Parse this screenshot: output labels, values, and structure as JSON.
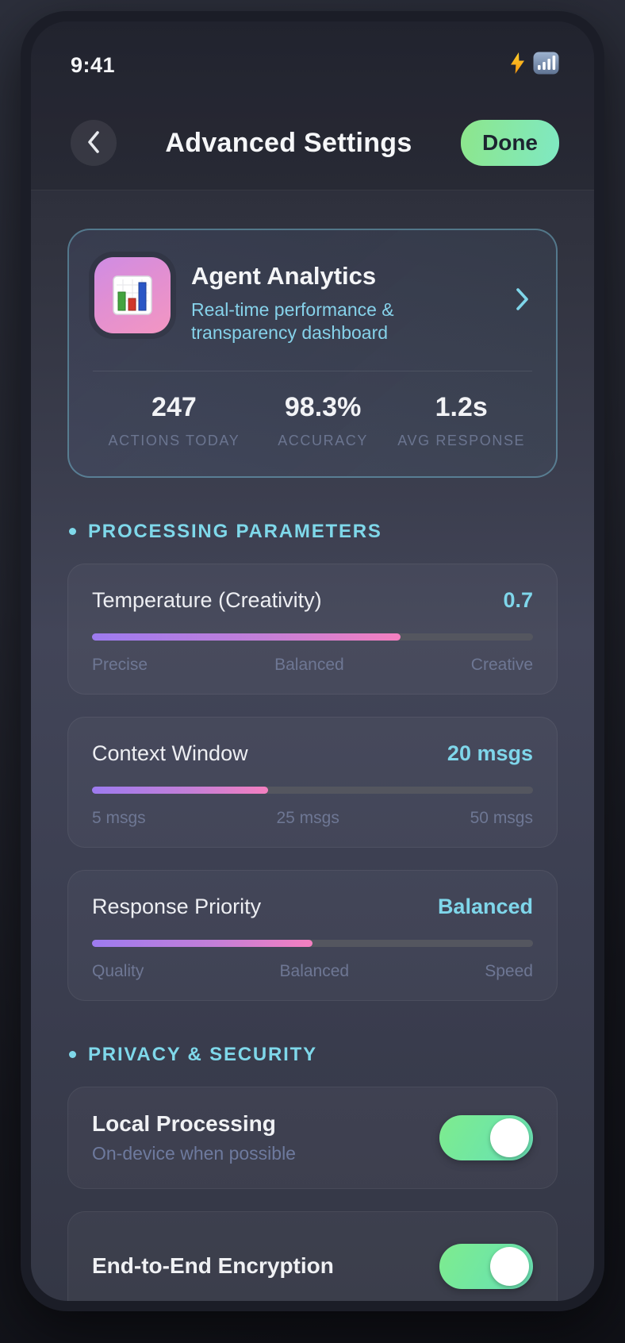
{
  "status_bar": {
    "time": "9:41",
    "icons": [
      "lightning-icon",
      "signal-bars-icon"
    ]
  },
  "header": {
    "title": "Advanced Settings",
    "back_icon": "chevron-left-icon",
    "done_label": "Done"
  },
  "analytics_card": {
    "icon": "bar-chart-icon",
    "title": "Agent Analytics",
    "subtitle": "Real-time performance & transparency dashboard",
    "chevron": "chevron-right-icon",
    "stats": [
      {
        "value": "247",
        "label": "ACTIONS TODAY"
      },
      {
        "value": "98.3%",
        "label": "ACCURACY"
      },
      {
        "value": "1.2s",
        "label": "AVG RESPONSE"
      }
    ]
  },
  "sections": [
    {
      "title": "PROCESSING PARAMETERS"
    },
    {
      "title": "PRIVACY & SECURITY"
    }
  ],
  "sliders": [
    {
      "name": "Temperature (Creativity)",
      "value": "0.7",
      "fill_percent": 70,
      "labels": [
        "Precise",
        "Balanced",
        "Creative"
      ]
    },
    {
      "name": "Context Window",
      "value": "20 msgs",
      "fill_percent": 40,
      "labels": [
        "5 msgs",
        "25 msgs",
        "50 msgs"
      ]
    },
    {
      "name": "Response Priority",
      "value": "Balanced",
      "fill_percent": 50,
      "labels": [
        "Quality",
        "Balanced",
        "Speed"
      ]
    }
  ],
  "toggles": [
    {
      "name": "Local Processing",
      "subtitle": "On-device when possible",
      "state": "on"
    },
    {
      "name": "End-to-End Encryption",
      "state": "on"
    }
  ],
  "colors": {
    "accent_cyan": "#7fd6ea",
    "accent_green_start": "#8de68b",
    "accent_green_end": "#7fe9c3",
    "slider_purple": "#9d7bf0",
    "slider_pink": "#f47fc0",
    "muted_label": "#6e7794",
    "card_border_teal": "#7dcde4"
  }
}
